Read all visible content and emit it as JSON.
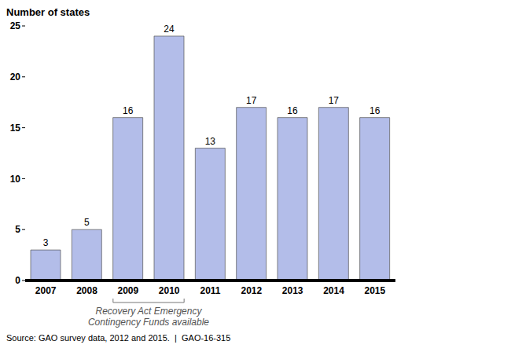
{
  "chart_data": {
    "type": "bar",
    "ylabel": "Number of states",
    "categories": [
      "2007",
      "2008",
      "2009",
      "2010",
      "2011",
      "2012",
      "2013",
      "2014",
      "2015"
    ],
    "values": [
      3,
      5,
      16,
      24,
      13,
      17,
      16,
      17,
      16
    ],
    "color": "#b3bde9",
    "ylim": [
      0,
      25
    ],
    "yticks": [
      0,
      5,
      10,
      15,
      20,
      25
    ],
    "grid": false,
    "data_labels": true,
    "annotation": {
      "lines": [
        "Recovery Act Emergency",
        "Contingency Funds available"
      ],
      "categories": [
        "2009",
        "2010"
      ]
    },
    "source": "Source: GAO survey data, 2012 and 2015.  |  GAO-16-315"
  }
}
